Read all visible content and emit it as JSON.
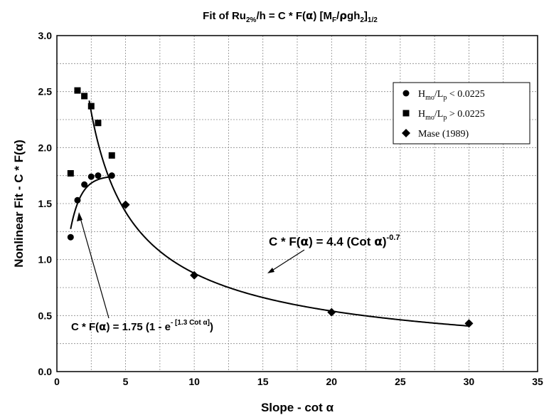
{
  "chart_data": {
    "type": "scatter",
    "title": {
      "prefix": "Fit of Ru",
      "sub1": "2%",
      "mid1": "/h = C * F(",
      "alpha": "α",
      "mid2": ")  [M",
      "sub2": "F",
      "mid3": "/",
      "rho": "ρ",
      "mid4": "gh",
      "sub3": "2",
      "mid5": "]",
      "sub4": "1/2"
    },
    "xlabel": "Slope - cot α",
    "ylabel": "Nonlinear Fit  - C * F(α)",
    "xlim": [
      0,
      35
    ],
    "ylim": [
      0,
      3.0
    ],
    "xticks": [
      "0",
      "5",
      "10",
      "15",
      "20",
      "25",
      "30",
      "35"
    ],
    "yticks": [
      "0.0",
      "0.5",
      "1.0",
      "1.5",
      "2.0",
      "2.5",
      "3.0"
    ],
    "grid": true,
    "legend_position": "top-right",
    "series": [
      {
        "name_main": "H",
        "name_sub1": "mo",
        "name_mid": "/L",
        "name_sub2": "p",
        "name_tail": " < 0.0225",
        "marker": "circle",
        "x": [
          1.0,
          1.5,
          2.0,
          2.5,
          3.0,
          4.0
        ],
        "y": [
          1.2,
          1.53,
          1.67,
          1.74,
          1.75,
          1.75
        ]
      },
      {
        "name_main": "H",
        "name_sub1": "mo",
        "name_mid": "/L",
        "name_sub2": "p",
        "name_tail": " > 0.0225",
        "marker": "square",
        "x": [
          1.0,
          1.5,
          2.0,
          2.5,
          3.0,
          4.0
        ],
        "y": [
          1.77,
          2.51,
          2.46,
          2.37,
          2.22,
          1.93
        ]
      },
      {
        "name": "Mase (1989)",
        "marker": "diamond",
        "x": [
          5,
          10,
          20,
          30
        ],
        "y": [
          1.49,
          0.86,
          0.53,
          0.43
        ]
      }
    ],
    "fits": [
      {
        "coef": 4.4,
        "exponent": -0.7,
        "x_range": [
          2.35,
          30.0
        ]
      },
      {
        "amplitude": 1.75,
        "rate": 1.3,
        "x_range": [
          1.0,
          4.0
        ]
      }
    ],
    "annotations": [
      {
        "lead": "C * F(",
        "alpha": "α",
        "mid": ") = 4.4 (Cot ",
        "alpha2": "α",
        "tail": ")",
        "sup": "-0.7"
      },
      {
        "lead": "C * F(",
        "alpha": "α",
        "mid": ") = 1.75 (1 - e",
        "sup": "- [1.3 Cot α]",
        "tail": ")"
      }
    ]
  }
}
